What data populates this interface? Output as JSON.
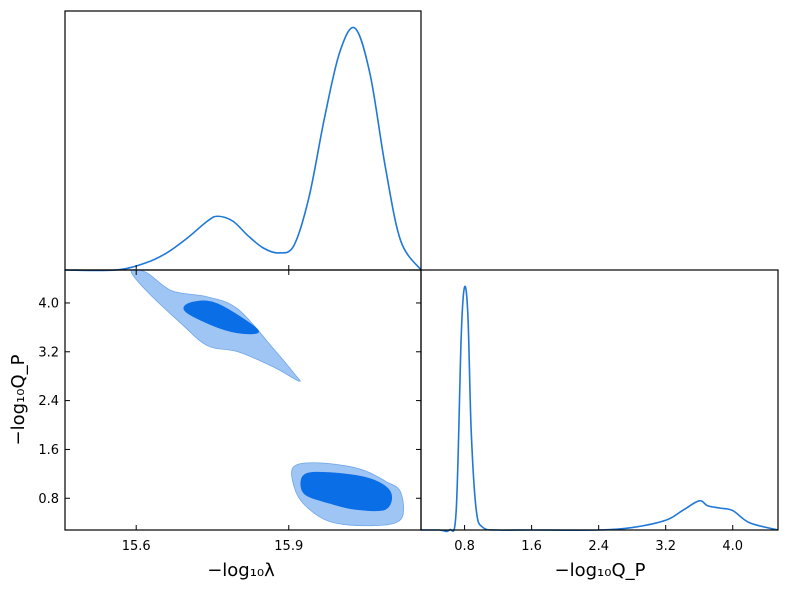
{
  "colors": {
    "line": "#1f78d8",
    "fill_outer": "#9ec5f4",
    "fill_inner": "#0a6ee6",
    "frame": "#000000"
  },
  "chart_data": [
    {
      "type": "line",
      "panel": "marginal-lambda",
      "xlim": [
        15.46,
        16.16
      ],
      "x": [
        15.46,
        15.56,
        15.62,
        15.66,
        15.7,
        15.74,
        15.76,
        15.79,
        15.82,
        15.85,
        15.88,
        15.91,
        15.94,
        15.97,
        16.0,
        16.03,
        16.06,
        16.09,
        16.12,
        16.16
      ],
      "y": [
        0.0,
        0.0,
        0.03,
        0.07,
        0.13,
        0.2,
        0.22,
        0.2,
        0.14,
        0.09,
        0.07,
        0.1,
        0.3,
        0.62,
        0.89,
        0.99,
        0.8,
        0.42,
        0.12,
        0.0
      ],
      "yticks": false
    },
    {
      "type": "contour",
      "panel": "joint",
      "xlabel": "−log₁₀λ",
      "ylabel": "−log₁₀Q_P",
      "xlim": [
        15.46,
        16.16
      ],
      "ylim": [
        0.28,
        4.54
      ],
      "xticks": [
        15.6,
        15.9
      ],
      "xtick_labels": [
        "15.6",
        "15.9"
      ],
      "yticks": [
        4.0,
        3.2,
        2.4,
        1.6,
        0.8
      ],
      "ytick_labels": [
        "4.0",
        "3.2",
        "2.4",
        "1.6",
        "0.8"
      ],
      "regions": [
        {
          "level": "outer",
          "x": [
            15.59,
            15.62,
            15.67,
            15.74,
            15.8,
            15.87,
            15.91,
            15.92,
            15.87,
            15.8,
            15.74,
            15.69,
            15.62
          ],
          "y": [
            4.52,
            4.5,
            4.2,
            4.1,
            3.9,
            3.25,
            2.85,
            2.72,
            2.95,
            3.2,
            3.3,
            3.65,
            4.2
          ]
        },
        {
          "level": "inner",
          "x": [
            15.7,
            15.74,
            15.78,
            15.84,
            15.81,
            15.76,
            15.7
          ],
          "y": [
            3.98,
            4.03,
            3.9,
            3.55,
            3.5,
            3.6,
            3.84
          ]
        },
        {
          "level": "outer",
          "x": [
            15.91,
            15.96,
            16.04,
            16.09,
            16.12,
            16.12,
            16.06,
            15.98,
            15.93,
            15.91
          ],
          "y": [
            1.32,
            1.38,
            1.28,
            1.08,
            0.9,
            0.45,
            0.35,
            0.42,
            0.7,
            1.0
          ]
        },
        {
          "level": "inner",
          "x": [
            15.93,
            15.98,
            16.06,
            16.1,
            16.09,
            16.03,
            15.98,
            15.93
          ],
          "y": [
            1.18,
            1.22,
            1.12,
            0.9,
            0.62,
            0.62,
            0.72,
            0.88
          ]
        }
      ]
    },
    {
      "type": "line",
      "panel": "marginal-qp",
      "xlabel": "−log₁₀Q_P",
      "xlim": [
        0.28,
        4.54
      ],
      "xticks": [
        0.8,
        1.6,
        2.4,
        3.2,
        4.0
      ],
      "xtick_labels": [
        "0.8",
        "1.6",
        "2.4",
        "3.2",
        "4.0"
      ],
      "x": [
        0.28,
        0.5,
        0.62,
        0.7,
        0.76,
        0.8,
        0.84,
        0.88,
        0.94,
        1.02,
        1.2,
        1.6,
        2.4,
        2.8,
        3.2,
        3.4,
        3.6,
        3.7,
        3.85,
        4.0,
        4.2,
        4.54
      ],
      "y": [
        0.0,
        0.0,
        0.0,
        0.08,
        0.8,
        1.0,
        0.88,
        0.4,
        0.08,
        0.01,
        0.0,
        0.0,
        0.0,
        0.01,
        0.04,
        0.08,
        0.12,
        0.1,
        0.09,
        0.08,
        0.03,
        0.0
      ],
      "yticks": false
    }
  ]
}
